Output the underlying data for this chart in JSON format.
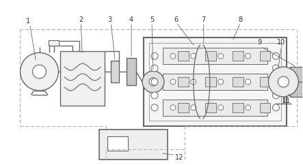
{
  "bg_color": "#ffffff",
  "line_color": "#666666",
  "dashed_color": "#aaaaaa",
  "label_color": "#333333",
  "figsize": [
    4.43,
    2.42
  ],
  "dpi": 100
}
